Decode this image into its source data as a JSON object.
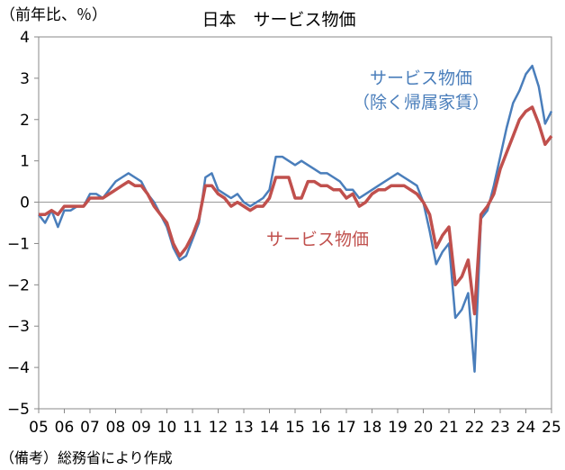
{
  "chart_data": {
    "type": "line",
    "title": "日本　サービス物価",
    "ylabel": "（前年比、％）",
    "note": "（備考）総務省により作成",
    "ylim": [
      -5,
      4
    ],
    "yticks": [
      4,
      3,
      2,
      1,
      0,
      -1,
      -2,
      -3,
      -4,
      -5
    ],
    "xlim": [
      2005,
      2025
    ],
    "x_categories": [
      "05",
      "06",
      "07",
      "08",
      "09",
      "10",
      "11",
      "12",
      "13",
      "14",
      "15",
      "16",
      "17",
      "18",
      "19",
      "20",
      "21",
      "22",
      "23",
      "24",
      "25"
    ],
    "zero_line": true,
    "grid": false,
    "series": [
      {
        "name": "サービス物価（除く帰属家賃）",
        "label_lines": [
          "サービス物価",
          "（除く帰属家賃）"
        ],
        "color": "#4a7ebb",
        "points": [
          [
            2005.0,
            -0.3
          ],
          [
            2005.25,
            -0.5
          ],
          [
            2005.5,
            -0.2
          ],
          [
            2005.75,
            -0.6
          ],
          [
            2006.0,
            -0.2
          ],
          [
            2006.25,
            -0.2
          ],
          [
            2006.5,
            -0.1
          ],
          [
            2006.75,
            -0.1
          ],
          [
            2007.0,
            0.2
          ],
          [
            2007.25,
            0.2
          ],
          [
            2007.5,
            0.1
          ],
          [
            2007.75,
            0.3
          ],
          [
            2008.0,
            0.5
          ],
          [
            2008.25,
            0.6
          ],
          [
            2008.5,
            0.7
          ],
          [
            2008.75,
            0.6
          ],
          [
            2009.0,
            0.5
          ],
          [
            2009.25,
            0.2
          ],
          [
            2009.5,
            0.0
          ],
          [
            2009.75,
            -0.3
          ],
          [
            2010.0,
            -0.6
          ],
          [
            2010.25,
            -1.1
          ],
          [
            2010.5,
            -1.4
          ],
          [
            2010.75,
            -1.3
          ],
          [
            2011.0,
            -0.9
          ],
          [
            2011.25,
            -0.5
          ],
          [
            2011.5,
            0.6
          ],
          [
            2011.75,
            0.7
          ],
          [
            2012.0,
            0.3
          ],
          [
            2012.25,
            0.2
          ],
          [
            2012.5,
            0.1
          ],
          [
            2012.75,
            0.2
          ],
          [
            2013.0,
            0.0
          ],
          [
            2013.25,
            -0.1
          ],
          [
            2013.5,
            0.0
          ],
          [
            2013.75,
            0.1
          ],
          [
            2014.0,
            0.3
          ],
          [
            2014.25,
            1.1
          ],
          [
            2014.5,
            1.1
          ],
          [
            2014.75,
            1.0
          ],
          [
            2015.0,
            0.9
          ],
          [
            2015.25,
            1.0
          ],
          [
            2015.5,
            0.9
          ],
          [
            2015.75,
            0.8
          ],
          [
            2016.0,
            0.7
          ],
          [
            2016.25,
            0.7
          ],
          [
            2016.5,
            0.6
          ],
          [
            2016.75,
            0.5
          ],
          [
            2017.0,
            0.3
          ],
          [
            2017.25,
            0.3
          ],
          [
            2017.5,
            0.1
          ],
          [
            2017.75,
            0.2
          ],
          [
            2018.0,
            0.3
          ],
          [
            2018.25,
            0.4
          ],
          [
            2018.5,
            0.5
          ],
          [
            2018.75,
            0.6
          ],
          [
            2019.0,
            0.7
          ],
          [
            2019.25,
            0.6
          ],
          [
            2019.5,
            0.5
          ],
          [
            2019.75,
            0.4
          ],
          [
            2020.0,
            0.0
          ],
          [
            2020.25,
            -0.7
          ],
          [
            2020.5,
            -1.5
          ],
          [
            2020.75,
            -1.2
          ],
          [
            2021.0,
            -1.0
          ],
          [
            2021.25,
            -2.8
          ],
          [
            2021.5,
            -2.6
          ],
          [
            2021.75,
            -2.2
          ],
          [
            2022.0,
            -4.1
          ],
          [
            2022.25,
            -0.4
          ],
          [
            2022.5,
            -0.2
          ],
          [
            2022.75,
            0.4
          ],
          [
            2023.0,
            1.1
          ],
          [
            2023.25,
            1.8
          ],
          [
            2023.5,
            2.4
          ],
          [
            2023.75,
            2.7
          ],
          [
            2024.0,
            3.1
          ],
          [
            2024.25,
            3.3
          ],
          [
            2024.5,
            2.8
          ],
          [
            2024.75,
            1.9
          ],
          [
            2025.0,
            2.2
          ]
        ]
      },
      {
        "name": "サービス物価",
        "label_lines": [
          "サービス物価"
        ],
        "color": "#c0504d",
        "points": [
          [
            2005.0,
            -0.3
          ],
          [
            2005.25,
            -0.3
          ],
          [
            2005.5,
            -0.2
          ],
          [
            2005.75,
            -0.3
          ],
          [
            2006.0,
            -0.1
          ],
          [
            2006.25,
            -0.1
          ],
          [
            2006.5,
            -0.1
          ],
          [
            2006.75,
            -0.1
          ],
          [
            2007.0,
            0.1
          ],
          [
            2007.25,
            0.1
          ],
          [
            2007.5,
            0.1
          ],
          [
            2007.75,
            0.2
          ],
          [
            2008.0,
            0.3
          ],
          [
            2008.25,
            0.4
          ],
          [
            2008.5,
            0.5
          ],
          [
            2008.75,
            0.4
          ],
          [
            2009.0,
            0.4
          ],
          [
            2009.25,
            0.2
          ],
          [
            2009.5,
            -0.1
          ],
          [
            2009.75,
            -0.3
          ],
          [
            2010.0,
            -0.5
          ],
          [
            2010.25,
            -1.0
          ],
          [
            2010.5,
            -1.3
          ],
          [
            2010.75,
            -1.1
          ],
          [
            2011.0,
            -0.8
          ],
          [
            2011.25,
            -0.4
          ],
          [
            2011.5,
            0.4
          ],
          [
            2011.75,
            0.4
          ],
          [
            2012.0,
            0.2
          ],
          [
            2012.25,
            0.1
          ],
          [
            2012.5,
            -0.1
          ],
          [
            2012.75,
            0.0
          ],
          [
            2013.0,
            -0.1
          ],
          [
            2013.25,
            -0.2
          ],
          [
            2013.5,
            -0.1
          ],
          [
            2013.75,
            -0.1
          ],
          [
            2014.0,
            0.1
          ],
          [
            2014.25,
            0.6
          ],
          [
            2014.5,
            0.6
          ],
          [
            2014.75,
            0.6
          ],
          [
            2015.0,
            0.1
          ],
          [
            2015.25,
            0.1
          ],
          [
            2015.5,
            0.5
          ],
          [
            2015.75,
            0.5
          ],
          [
            2016.0,
            0.4
          ],
          [
            2016.25,
            0.4
          ],
          [
            2016.5,
            0.3
          ],
          [
            2016.75,
            0.3
          ],
          [
            2017.0,
            0.1
          ],
          [
            2017.25,
            0.2
          ],
          [
            2017.5,
            -0.1
          ],
          [
            2017.75,
            0.0
          ],
          [
            2018.0,
            0.2
          ],
          [
            2018.25,
            0.3
          ],
          [
            2018.5,
            0.3
          ],
          [
            2018.75,
            0.4
          ],
          [
            2019.0,
            0.4
          ],
          [
            2019.25,
            0.4
          ],
          [
            2019.5,
            0.3
          ],
          [
            2019.75,
            0.2
          ],
          [
            2020.0,
            0.0
          ],
          [
            2020.25,
            -0.3
          ],
          [
            2020.5,
            -1.1
          ],
          [
            2020.75,
            -0.8
          ],
          [
            2021.0,
            -0.6
          ],
          [
            2021.25,
            -2.0
          ],
          [
            2021.5,
            -1.8
          ],
          [
            2021.75,
            -1.4
          ],
          [
            2022.0,
            -2.7
          ],
          [
            2022.25,
            -0.3
          ],
          [
            2022.5,
            -0.1
          ],
          [
            2022.75,
            0.2
          ],
          [
            2023.0,
            0.8
          ],
          [
            2023.25,
            1.2
          ],
          [
            2023.5,
            1.6
          ],
          [
            2023.75,
            2.0
          ],
          [
            2024.0,
            2.2
          ],
          [
            2024.25,
            2.3
          ],
          [
            2024.5,
            1.9
          ],
          [
            2024.75,
            1.4
          ],
          [
            2025.0,
            1.6
          ]
        ]
      }
    ]
  }
}
